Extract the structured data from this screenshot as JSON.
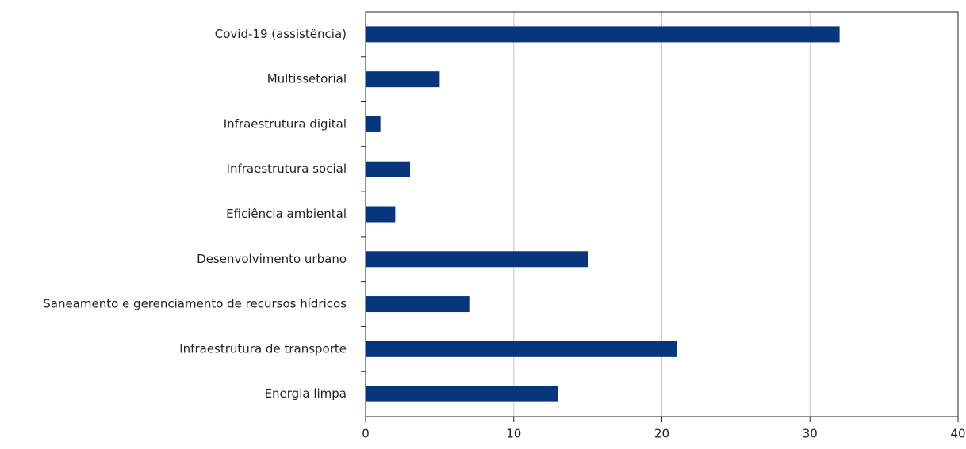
{
  "chart_data": {
    "type": "barh",
    "categories": [
      "Covid-19 (assistência)",
      "Multissetorial",
      "Infraestrutura digital",
      "Infraestrutura social",
      "Eficiência ambiental",
      "Desenvolvimento urbano",
      "Saneamento e gerenciamento de recursos hídricos",
      "Infraestrutura de transporte",
      "Energia limpa"
    ],
    "values": [
      32,
      5,
      1,
      3,
      2,
      15,
      7,
      21,
      13
    ],
    "color": "#08367c",
    "xlim": [
      0,
      40
    ],
    "xticks": [
      0,
      10,
      20,
      30,
      40
    ],
    "grid": true
  }
}
